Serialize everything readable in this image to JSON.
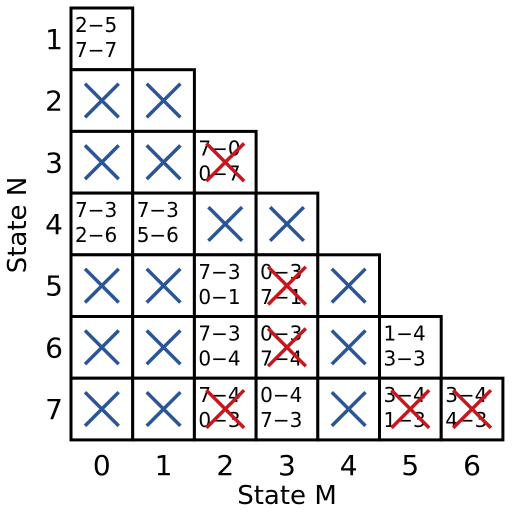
{
  "title_y": "State N",
  "title_x": "State M",
  "columns": [
    "0",
    "1",
    "2",
    "3",
    "4",
    "5",
    "6"
  ],
  "rows": [
    {
      "label": "1",
      "cells": [
        {
          "lines": [
            "2−5",
            "7−7"
          ]
        }
      ]
    },
    {
      "label": "2",
      "cells": [
        {
          "crossed": true
        },
        {
          "crossed": true
        }
      ]
    },
    {
      "label": "3",
      "cells": [
        {
          "crossed": true
        },
        {
          "crossed": true
        },
        {
          "lines": [
            "7−0",
            "0−7"
          ],
          "red_cross": true
        }
      ]
    },
    {
      "label": "4",
      "cells": [
        {
          "lines": [
            "7−3",
            "2−6"
          ]
        },
        {
          "lines": [
            "7−3",
            "5−6"
          ]
        },
        {
          "crossed": true
        },
        {
          "crossed": true
        }
      ]
    },
    {
      "label": "5",
      "cells": [
        {
          "crossed": true
        },
        {
          "crossed": true
        },
        {
          "lines": [
            "7−3",
            "0−1"
          ]
        },
        {
          "lines": [
            "0−3",
            "7−1"
          ],
          "red_cross": true
        },
        {
          "crossed": true
        }
      ]
    },
    {
      "label": "6",
      "cells": [
        {
          "crossed": true
        },
        {
          "crossed": true
        },
        {
          "lines": [
            "7−3",
            "0−4"
          ]
        },
        {
          "lines": [
            "0−3",
            "7−4"
          ],
          "red_cross": true
        },
        {
          "crossed": true
        },
        {
          "lines": [
            "1−4",
            "3−3"
          ]
        }
      ]
    },
    {
      "label": "7",
      "cells": [
        {
          "crossed": true
        },
        {
          "crossed": true
        },
        {
          "lines": [
            "7−4",
            "0−3"
          ],
          "red_cross": true
        },
        {
          "lines": [
            "0−4",
            "7−3"
          ]
        },
        {
          "crossed": true
        },
        {
          "lines": [
            "3−4",
            "1−3"
          ],
          "red_cross": true
        },
        {
          "lines": [
            "3−4",
            "4−3"
          ],
          "red_cross": true
        }
      ]
    }
  ]
}
